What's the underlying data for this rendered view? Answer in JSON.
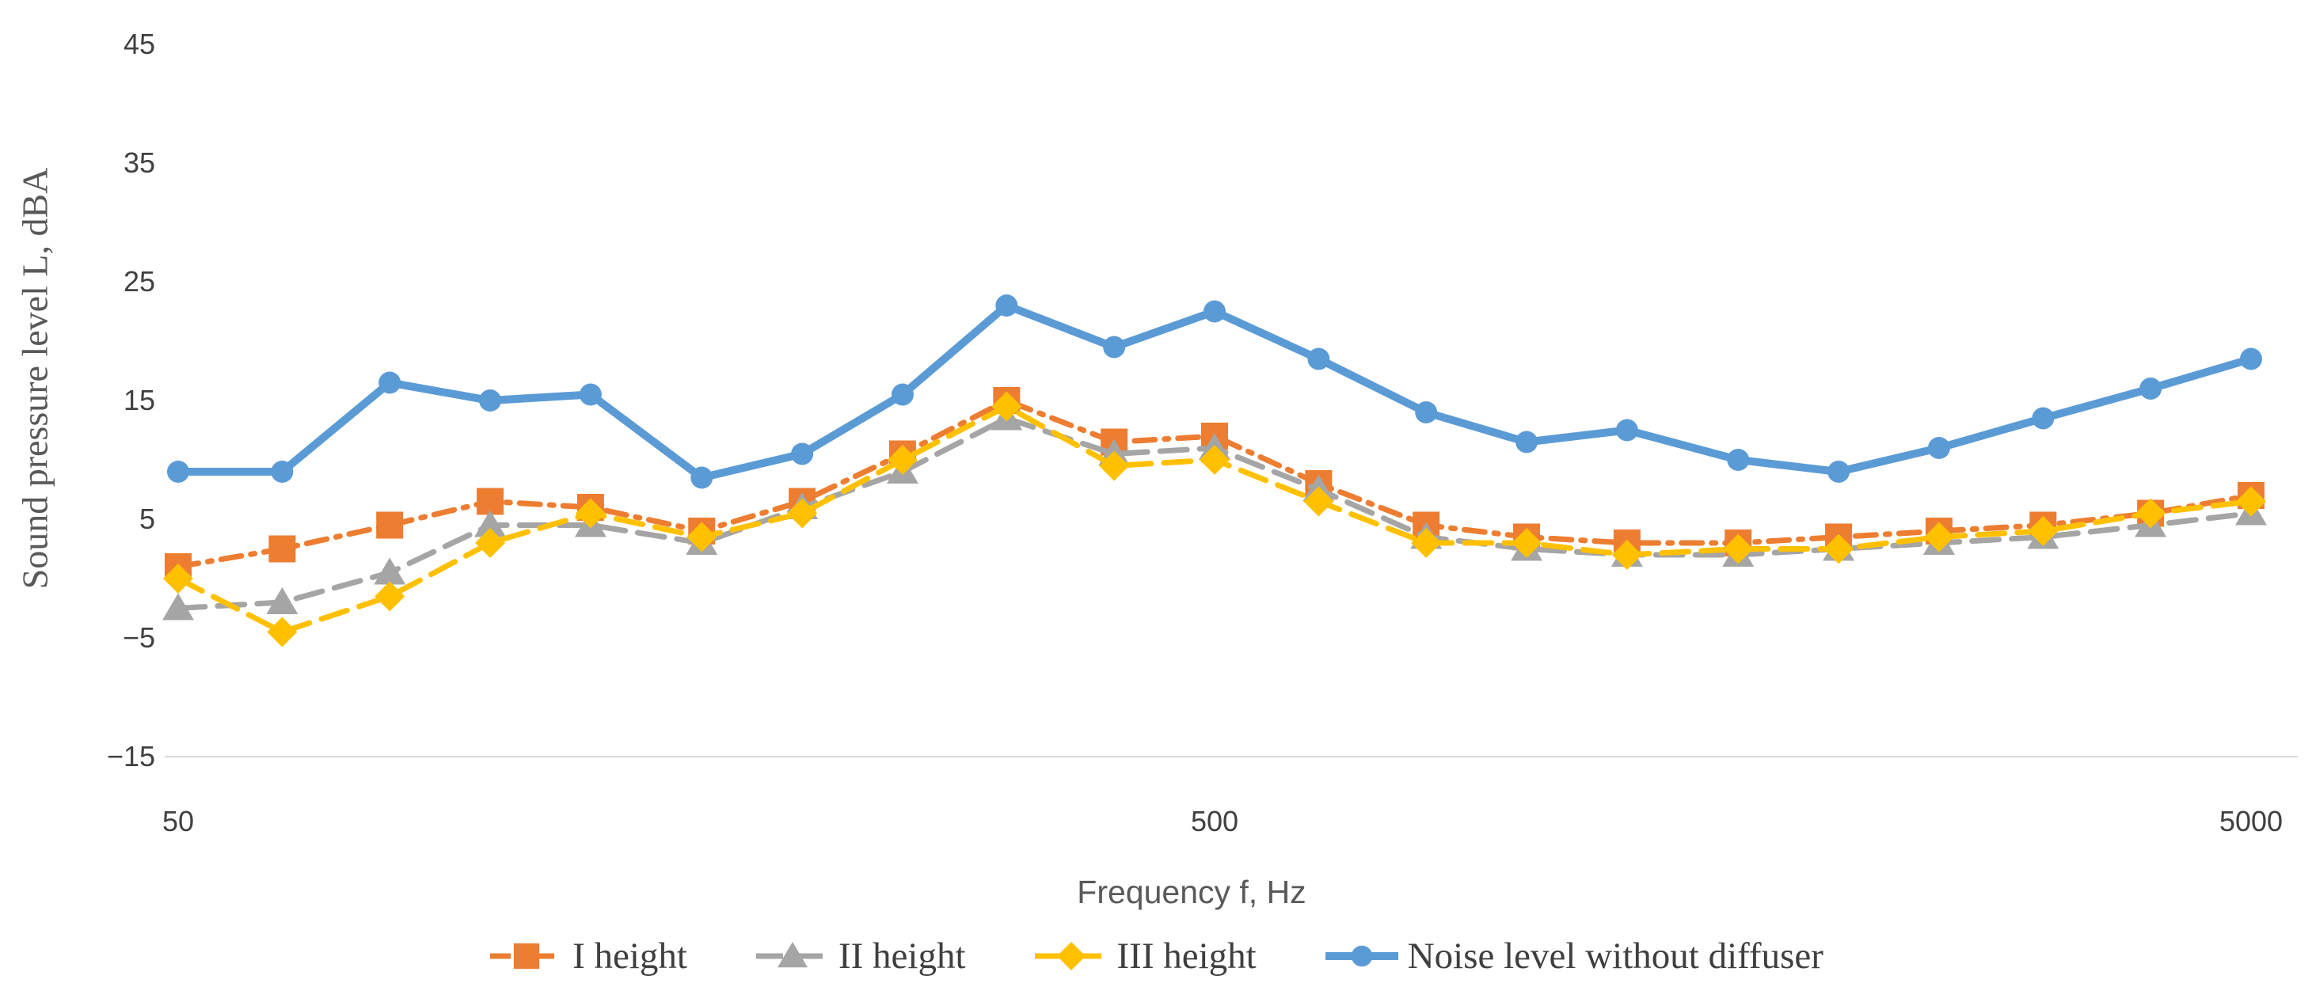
{
  "chart_data": {
    "type": "line",
    "title": "",
    "xlabel": "Frequency f, Hz",
    "ylabel": "Sound pressure level L, dBA",
    "x_axis": {
      "scale": "log",
      "min": 50,
      "max": 5000,
      "ticks": [
        50,
        500,
        5000
      ]
    },
    "y_axis": {
      "min": -15,
      "max": 45,
      "tick_step": 10,
      "ticks": [
        45,
        35,
        25,
        15,
        5,
        -5,
        -15
      ]
    },
    "grid": "none",
    "legend_position": "bottom",
    "axis_line_color": "#d9d9d9",
    "tick_label_color": "#404040",
    "axis_title_color": "#595959",
    "x": [
      50,
      63,
      80,
      100,
      125,
      160,
      200,
      250,
      315,
      400,
      500,
      630,
      800,
      1000,
      1250,
      1600,
      2000,
      2500,
      3150,
      4000,
      5000
    ],
    "series": [
      {
        "name": "I height",
        "color": "#ED7D31",
        "marker": "square",
        "line_style": "dashdot",
        "values": [
          1,
          2.5,
          4.5,
          6.5,
          6,
          4,
          6.5,
          10.5,
          15,
          11.5,
          12,
          8,
          4.5,
          3.5,
          3,
          3,
          3.5,
          4,
          4.5,
          5.5,
          7
        ]
      },
      {
        "name": "II height",
        "color": "#A5A5A5",
        "marker": "triangle",
        "line_style": "dash",
        "values": [
          -2.5,
          -2,
          0.5,
          4.5,
          4.5,
          3,
          6,
          9,
          13.5,
          10.5,
          11,
          7.5,
          3.5,
          2.5,
          2,
          2,
          2.5,
          3,
          3.5,
          4.5,
          5.5
        ]
      },
      {
        "name": "III height",
        "color": "#FFC000",
        "marker": "diamond",
        "line_style": "dash",
        "values": [
          0,
          -4.5,
          -1.5,
          3,
          5.5,
          3.5,
          5.5,
          10,
          14.5,
          9.5,
          10,
          6.5,
          3,
          3,
          2,
          2.5,
          2.5,
          3.5,
          4,
          5.5,
          6.5
        ]
      },
      {
        "name": "Noise level without diffuser",
        "color": "#5B9BD5",
        "marker": "circle",
        "line_style": "solid",
        "values": [
          9,
          9,
          16.5,
          15,
          15.5,
          8.5,
          10.5,
          15.5,
          23,
          19.5,
          22.5,
          18.5,
          14,
          11.5,
          12.5,
          10,
          9,
          11,
          13.5,
          16,
          18.5
        ]
      }
    ]
  }
}
